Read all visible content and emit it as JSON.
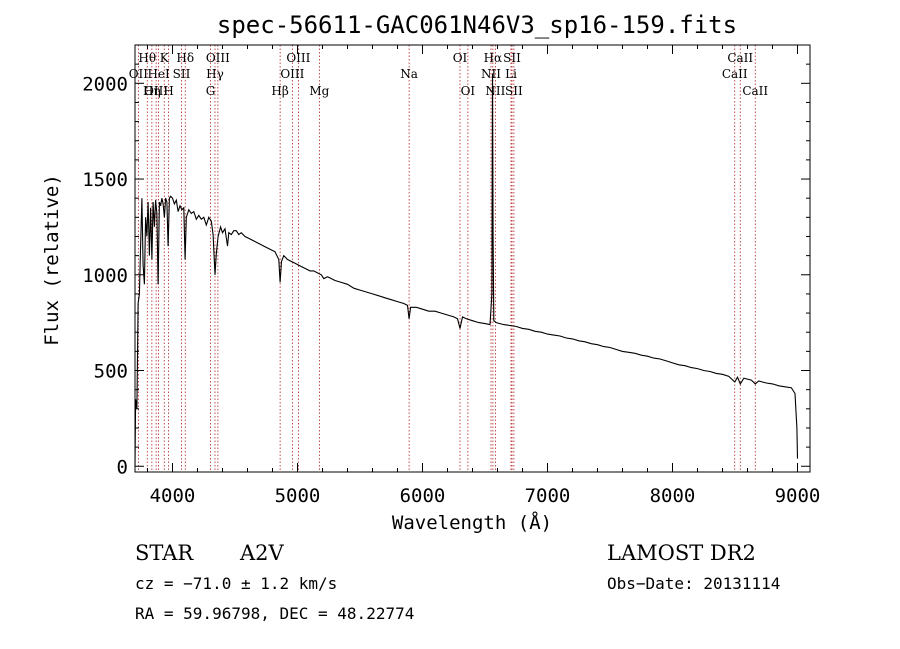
{
  "chart_data": {
    "type": "line",
    "title": "spec-56611-GAC061N46V3_sp16-159.fits",
    "xlabel": "Wavelength (Å)",
    "ylabel": "Flux (relative)",
    "xlim": [
      3700,
      9100
    ],
    "ylim": [
      -30,
      2200
    ],
    "x_ticks": [
      4000,
      5000,
      6000,
      7000,
      8000,
      9000
    ],
    "y_ticks": [
      0,
      500,
      1000,
      1500,
      2000
    ],
    "grid": false,
    "series": [
      {
        "points": [
          [
            3700,
            0
          ],
          [
            3705,
            350
          ],
          [
            3715,
            300
          ],
          [
            3725,
            850
          ],
          [
            3735,
            900
          ],
          [
            3745,
            1150
          ],
          [
            3755,
            1400
          ],
          [
            3765,
            1050
          ],
          [
            3775,
            950
          ],
          [
            3785,
            1300
          ],
          [
            3795,
            1200
          ],
          [
            3805,
            1380
          ],
          [
            3815,
            1100
          ],
          [
            3825,
            1350
          ],
          [
            3835,
            1080
          ],
          [
            3845,
            1380
          ],
          [
            3855,
            1250
          ],
          [
            3865,
            1390
          ],
          [
            3875,
            1320
          ],
          [
            3885,
            950
          ],
          [
            3895,
            1380
          ],
          [
            3905,
            1360
          ],
          [
            3915,
            1400
          ],
          [
            3925,
            1370
          ],
          [
            3935,
            1300
          ],
          [
            3945,
            1400
          ],
          [
            3955,
            1380
          ],
          [
            3965,
            1150
          ],
          [
            3975,
            1400
          ],
          [
            3985,
            1410
          ],
          [
            4000,
            1400
          ],
          [
            4015,
            1370
          ],
          [
            4030,
            1390
          ],
          [
            4045,
            1330
          ],
          [
            4060,
            1360
          ],
          [
            4075,
            1340
          ],
          [
            4090,
            1350
          ],
          [
            4101,
            1080
          ],
          [
            4110,
            1300
          ],
          [
            4130,
            1340
          ],
          [
            4150,
            1320
          ],
          [
            4170,
            1330
          ],
          [
            4190,
            1290
          ],
          [
            4210,
            1310
          ],
          [
            4230,
            1290
          ],
          [
            4250,
            1300
          ],
          [
            4270,
            1260
          ],
          [
            4290,
            1300
          ],
          [
            4310,
            1280
          ],
          [
            4325,
            1210
          ],
          [
            4340,
            1000
          ],
          [
            4350,
            1110
          ],
          [
            4365,
            1200
          ],
          [
            4385,
            1250
          ],
          [
            4400,
            1220
          ],
          [
            4420,
            1240
          ],
          [
            4440,
            1150
          ],
          [
            4450,
            1220
          ],
          [
            4470,
            1210
          ],
          [
            4490,
            1230
          ],
          [
            4510,
            1230
          ],
          [
            4530,
            1210
          ],
          [
            4550,
            1220
          ],
          [
            4580,
            1200
          ],
          [
            4610,
            1190
          ],
          [
            4640,
            1180
          ],
          [
            4670,
            1170
          ],
          [
            4700,
            1160
          ],
          [
            4730,
            1150
          ],
          [
            4760,
            1140
          ],
          [
            4790,
            1130
          ],
          [
            4820,
            1120
          ],
          [
            4850,
            1080
          ],
          [
            4861,
            960
          ],
          [
            4872,
            1070
          ],
          [
            4890,
            1100
          ],
          [
            4920,
            1080
          ],
          [
            4950,
            1070
          ],
          [
            4980,
            1060
          ],
          [
            5010,
            1050
          ],
          [
            5040,
            1040
          ],
          [
            5070,
            1030
          ],
          [
            5100,
            1020
          ],
          [
            5130,
            1020
          ],
          [
            5160,
            1010
          ],
          [
            5190,
            1000
          ],
          [
            5210,
            980
          ],
          [
            5240,
            990
          ],
          [
            5270,
            980
          ],
          [
            5300,
            970
          ],
          [
            5350,
            960
          ],
          [
            5400,
            950
          ],
          [
            5450,
            930
          ],
          [
            5500,
            920
          ],
          [
            5550,
            910
          ],
          [
            5600,
            900
          ],
          [
            5650,
            890
          ],
          [
            5700,
            880
          ],
          [
            5750,
            870
          ],
          [
            5800,
            860
          ],
          [
            5850,
            850
          ],
          [
            5880,
            840
          ],
          [
            5893,
            770
          ],
          [
            5905,
            830
          ],
          [
            5950,
            830
          ],
          [
            6000,
            820
          ],
          [
            6050,
            810
          ],
          [
            6100,
            810
          ],
          [
            6150,
            800
          ],
          [
            6200,
            790
          ],
          [
            6250,
            780
          ],
          [
            6280,
            770
          ],
          [
            6300,
            720
          ],
          [
            6320,
            780
          ],
          [
            6350,
            770
          ],
          [
            6400,
            760
          ],
          [
            6450,
            750
          ],
          [
            6500,
            745
          ],
          [
            6540,
            740
          ],
          [
            6555,
            900
          ],
          [
            6560,
            2050
          ],
          [
            6565,
            1200
          ],
          [
            6570,
            760
          ],
          [
            6590,
            750
          ],
          [
            6620,
            745
          ],
          [
            6650,
            740
          ],
          [
            6700,
            735
          ],
          [
            6750,
            730
          ],
          [
            6800,
            720
          ],
          [
            6850,
            715
          ],
          [
            6900,
            705
          ],
          [
            6950,
            700
          ],
          [
            7000,
            690
          ],
          [
            7050,
            685
          ],
          [
            7100,
            680
          ],
          [
            7150,
            670
          ],
          [
            7200,
            665
          ],
          [
            7250,
            655
          ],
          [
            7300,
            650
          ],
          [
            7350,
            640
          ],
          [
            7400,
            635
          ],
          [
            7450,
            625
          ],
          [
            7500,
            620
          ],
          [
            7550,
            610
          ],
          [
            7600,
            600
          ],
          [
            7650,
            595
          ],
          [
            7700,
            590
          ],
          [
            7750,
            580
          ],
          [
            7800,
            575
          ],
          [
            7850,
            565
          ],
          [
            7900,
            560
          ],
          [
            7950,
            550
          ],
          [
            8000,
            540
          ],
          [
            8050,
            530
          ],
          [
            8100,
            525
          ],
          [
            8150,
            515
          ],
          [
            8200,
            510
          ],
          [
            8250,
            500
          ],
          [
            8300,
            495
          ],
          [
            8350,
            485
          ],
          [
            8400,
            480
          ],
          [
            8450,
            470
          ],
          [
            8498,
            440
          ],
          [
            8520,
            465
          ],
          [
            8542,
            430
          ],
          [
            8570,
            460
          ],
          [
            8600,
            455
          ],
          [
            8630,
            450
          ],
          [
            8662,
            430
          ],
          [
            8690,
            445
          ],
          [
            8720,
            440
          ],
          [
            8750,
            435
          ],
          [
            8800,
            430
          ],
          [
            8850,
            420
          ],
          [
            8900,
            415
          ],
          [
            8950,
            410
          ],
          [
            8980,
            380
          ],
          [
            8995,
            200
          ],
          [
            9000,
            40
          ]
        ]
      }
    ],
    "line_markers": [
      {
        "label": "Hθ",
        "x": 3798,
        "row": 1
      },
      {
        "label": "OII",
        "x": 3727,
        "row": 2
      },
      {
        "label": "OIII",
        "x": 3869,
        "row": 3
      },
      {
        "label": "K",
        "x": 3934,
        "row": 1
      },
      {
        "label": "HeI",
        "x": 3889,
        "row": 2
      },
      {
        "label": "Hη",
        "x": 3835,
        "row": 3
      },
      {
        "label": "Hδ",
        "x": 4102,
        "row": 1
      },
      {
        "label": "SII",
        "x": 4072,
        "row": 2
      },
      {
        "label": "H",
        "x": 3969,
        "row": 3
      },
      {
        "label": "OIII",
        "x": 4363,
        "row": 1
      },
      {
        "label": "Hγ",
        "x": 4340,
        "row": 2
      },
      {
        "label": "G",
        "x": 4304,
        "row": 3
      },
      {
        "label": "OIII",
        "x": 5007,
        "row": 1
      },
      {
        "label": "OIII",
        "x": 4959,
        "row": 2
      },
      {
        "label": "Hβ",
        "x": 4861,
        "row": 3
      },
      {
        "label": "Mg",
        "x": 5175,
        "row": 3
      },
      {
        "label": "Na",
        "x": 5893,
        "row": 2
      },
      {
        "label": "OI",
        "x": 6300,
        "row": 1
      },
      {
        "label": "OI",
        "x": 6363,
        "row": 3
      },
      {
        "label": "Hα",
        "x": 6563,
        "row": 1
      },
      {
        "label": "SII",
        "x": 6716,
        "row": 1
      },
      {
        "label": "NII",
        "x": 6548,
        "row": 2
      },
      {
        "label": "Li",
        "x": 6708,
        "row": 2
      },
      {
        "label": "NII",
        "x": 6583,
        "row": 3
      },
      {
        "label": "SII",
        "x": 6731,
        "row": 3
      },
      {
        "label": "CaII",
        "x": 8542,
        "row": 1
      },
      {
        "label": "CaII",
        "x": 8498,
        "row": 2
      },
      {
        "label": "CaII",
        "x": 8662,
        "row": 3
      }
    ]
  },
  "colors": {
    "spectrum": "#000000",
    "markers": "#b22222",
    "axes": "#000000"
  },
  "info": {
    "object_class": "STAR",
    "subclass": "A2V",
    "survey": "LAMOST DR2",
    "cz": "cz = −71.0 ± 1.2 km/s",
    "obs_date": "Obs−Date: 20131114",
    "coords": "RA =  59.96798, DEC =  48.22774"
  }
}
